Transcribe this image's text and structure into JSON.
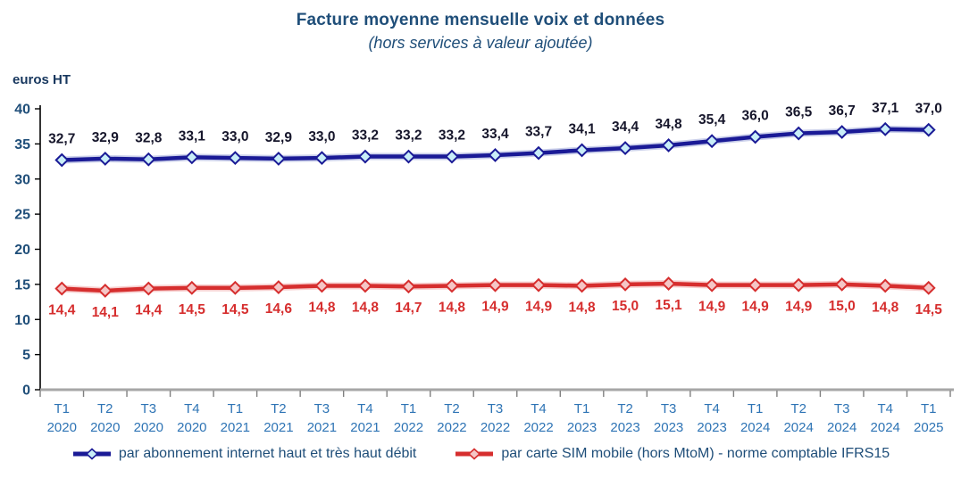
{
  "header": {
    "title": "Facture moyenne mensuelle voix et données",
    "subtitle": "(hors services à valeur ajoutée)"
  },
  "chart_data": {
    "type": "line",
    "title": "Facture moyenne mensuelle voix et données",
    "subtitle": "(hors services à valeur ajoutée)",
    "ylabel": "euros HT",
    "xlabel": "",
    "ylim": [
      0,
      40
    ],
    "yticks": [
      0,
      5,
      10,
      15,
      20,
      25,
      30,
      35,
      40
    ],
    "grid": false,
    "legend_position": "bottom",
    "categories": [
      "T1 2020",
      "T2 2020",
      "T3 2020",
      "T4 2020",
      "T1 2021",
      "T2 2021",
      "T3 2021",
      "T4 2021",
      "T1 2022",
      "T2 2022",
      "T3 2022",
      "T4 2022",
      "T1 2023",
      "T2 2023",
      "T3 2023",
      "T4 2023",
      "T1 2024",
      "T2 2024",
      "T3 2024",
      "T4 2024",
      "T1 2025"
    ],
    "series": [
      {
        "name": "par abonnement internet haut et très haut débit",
        "values": [
          32.7,
          32.9,
          32.8,
          33.1,
          33.0,
          32.9,
          33.0,
          33.2,
          33.2,
          33.2,
          33.4,
          33.7,
          34.1,
          34.4,
          34.8,
          35.4,
          36.0,
          36.5,
          36.7,
          37.1,
          37.0
        ],
        "labels": [
          "32,7",
          "32,9",
          "32,8",
          "33,1",
          "33,0",
          "32,9",
          "33,0",
          "33,2",
          "33,2",
          "33,2",
          "33,4",
          "33,7",
          "34,1",
          "34,4",
          "34,8",
          "35,4",
          "36,0",
          "36,5",
          "36,7",
          "37,1",
          "37,0"
        ],
        "label_position": "above",
        "line_color": "#1A1A96",
        "halo_color": "#9FA8D8",
        "marker_fill": "#C9EEF8",
        "label_color": "#16162B"
      },
      {
        "name": "par carte SIM mobile (hors MtoM)  - norme comptable IFRS15",
        "values": [
          14.4,
          14.1,
          14.4,
          14.5,
          14.5,
          14.6,
          14.8,
          14.8,
          14.7,
          14.8,
          14.9,
          14.9,
          14.8,
          15.0,
          15.1,
          14.9,
          14.9,
          14.9,
          15.0,
          14.8,
          14.5
        ],
        "labels": [
          "14,4",
          "14,1",
          "14,4",
          "14,5",
          "14,5",
          "14,6",
          "14,8",
          "14,8",
          "14,7",
          "14,8",
          "14,9",
          "14,9",
          "14,8",
          "15,0",
          "15,1",
          "14,9",
          "14,9",
          "14,9",
          "15,0",
          "14,8",
          "14,5"
        ],
        "label_position": "below",
        "line_color": "#D62E2E",
        "halo_color": "#F0A8A8",
        "marker_fill": "#F5C6C6",
        "label_color": "#D62E2E"
      }
    ],
    "axis_colors": {
      "y_tick_label": "#1F4E79",
      "x_tick_label": "#2E74B5",
      "y_axis_line": "#000000",
      "x_axis_line": "#A6A6A6",
      "x_tick_mark": "#808080",
      "ylabel_color": "#17375E"
    }
  }
}
